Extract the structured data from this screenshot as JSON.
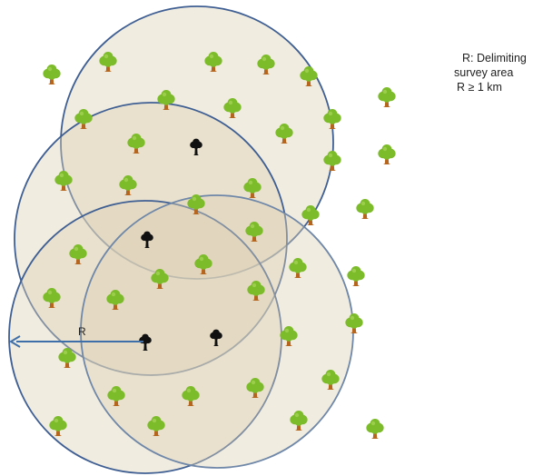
{
  "legend": {
    "line1": "R: Delimiting",
    "line2": "survey area",
    "line3": "R ≥ 1 km"
  },
  "radius_label": "R",
  "colors": {
    "circle_fill": "#ddd2b4",
    "circle_stroke": "#3f5f93",
    "circle_stroke_light": "#6f87a8",
    "arrow": "#3f6fa8",
    "healthy_tree_canopy": "#7cbb2a",
    "healthy_tree_trunk": "#b5651d",
    "infected_tree": "#111111"
  },
  "icons": {
    "healthy_tree": "healthy-tree-icon",
    "infected_tree": "infected-tree-icon"
  }
}
